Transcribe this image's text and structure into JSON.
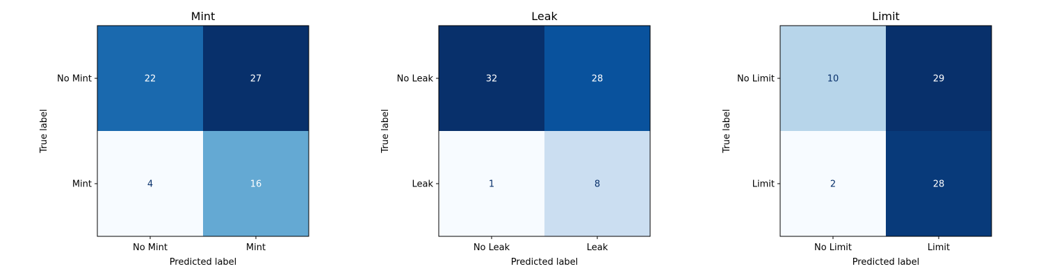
{
  "chart_data": [
    {
      "type": "heatmap",
      "title": "Mint",
      "xlabel": "Predicted label",
      "ylabel": "True label",
      "x_categories": [
        "No Mint",
        "Mint"
      ],
      "y_categories": [
        "No Mint",
        "Mint"
      ],
      "values": [
        [
          22,
          27
        ],
        [
          4,
          16
        ]
      ],
      "colormap": "Blues",
      "colorbar": false
    },
    {
      "type": "heatmap",
      "title": "Leak",
      "xlabel": "Predicted label",
      "ylabel": "True label",
      "x_categories": [
        "No Leak",
        "Leak"
      ],
      "y_categories": [
        "No Leak",
        "Leak"
      ],
      "values": [
        [
          32,
          28
        ],
        [
          1,
          8
        ]
      ],
      "colormap": "Blues",
      "colorbar": false
    },
    {
      "type": "heatmap",
      "title": "Limit",
      "xlabel": "Predicted label",
      "ylabel": "True label",
      "x_categories": [
        "No Limit",
        "Limit"
      ],
      "y_categories": [
        "No Limit",
        "Limit"
      ],
      "values": [
        [
          10,
          29
        ],
        [
          2,
          28
        ]
      ],
      "colormap": "Blues",
      "colorbar": false
    }
  ]
}
